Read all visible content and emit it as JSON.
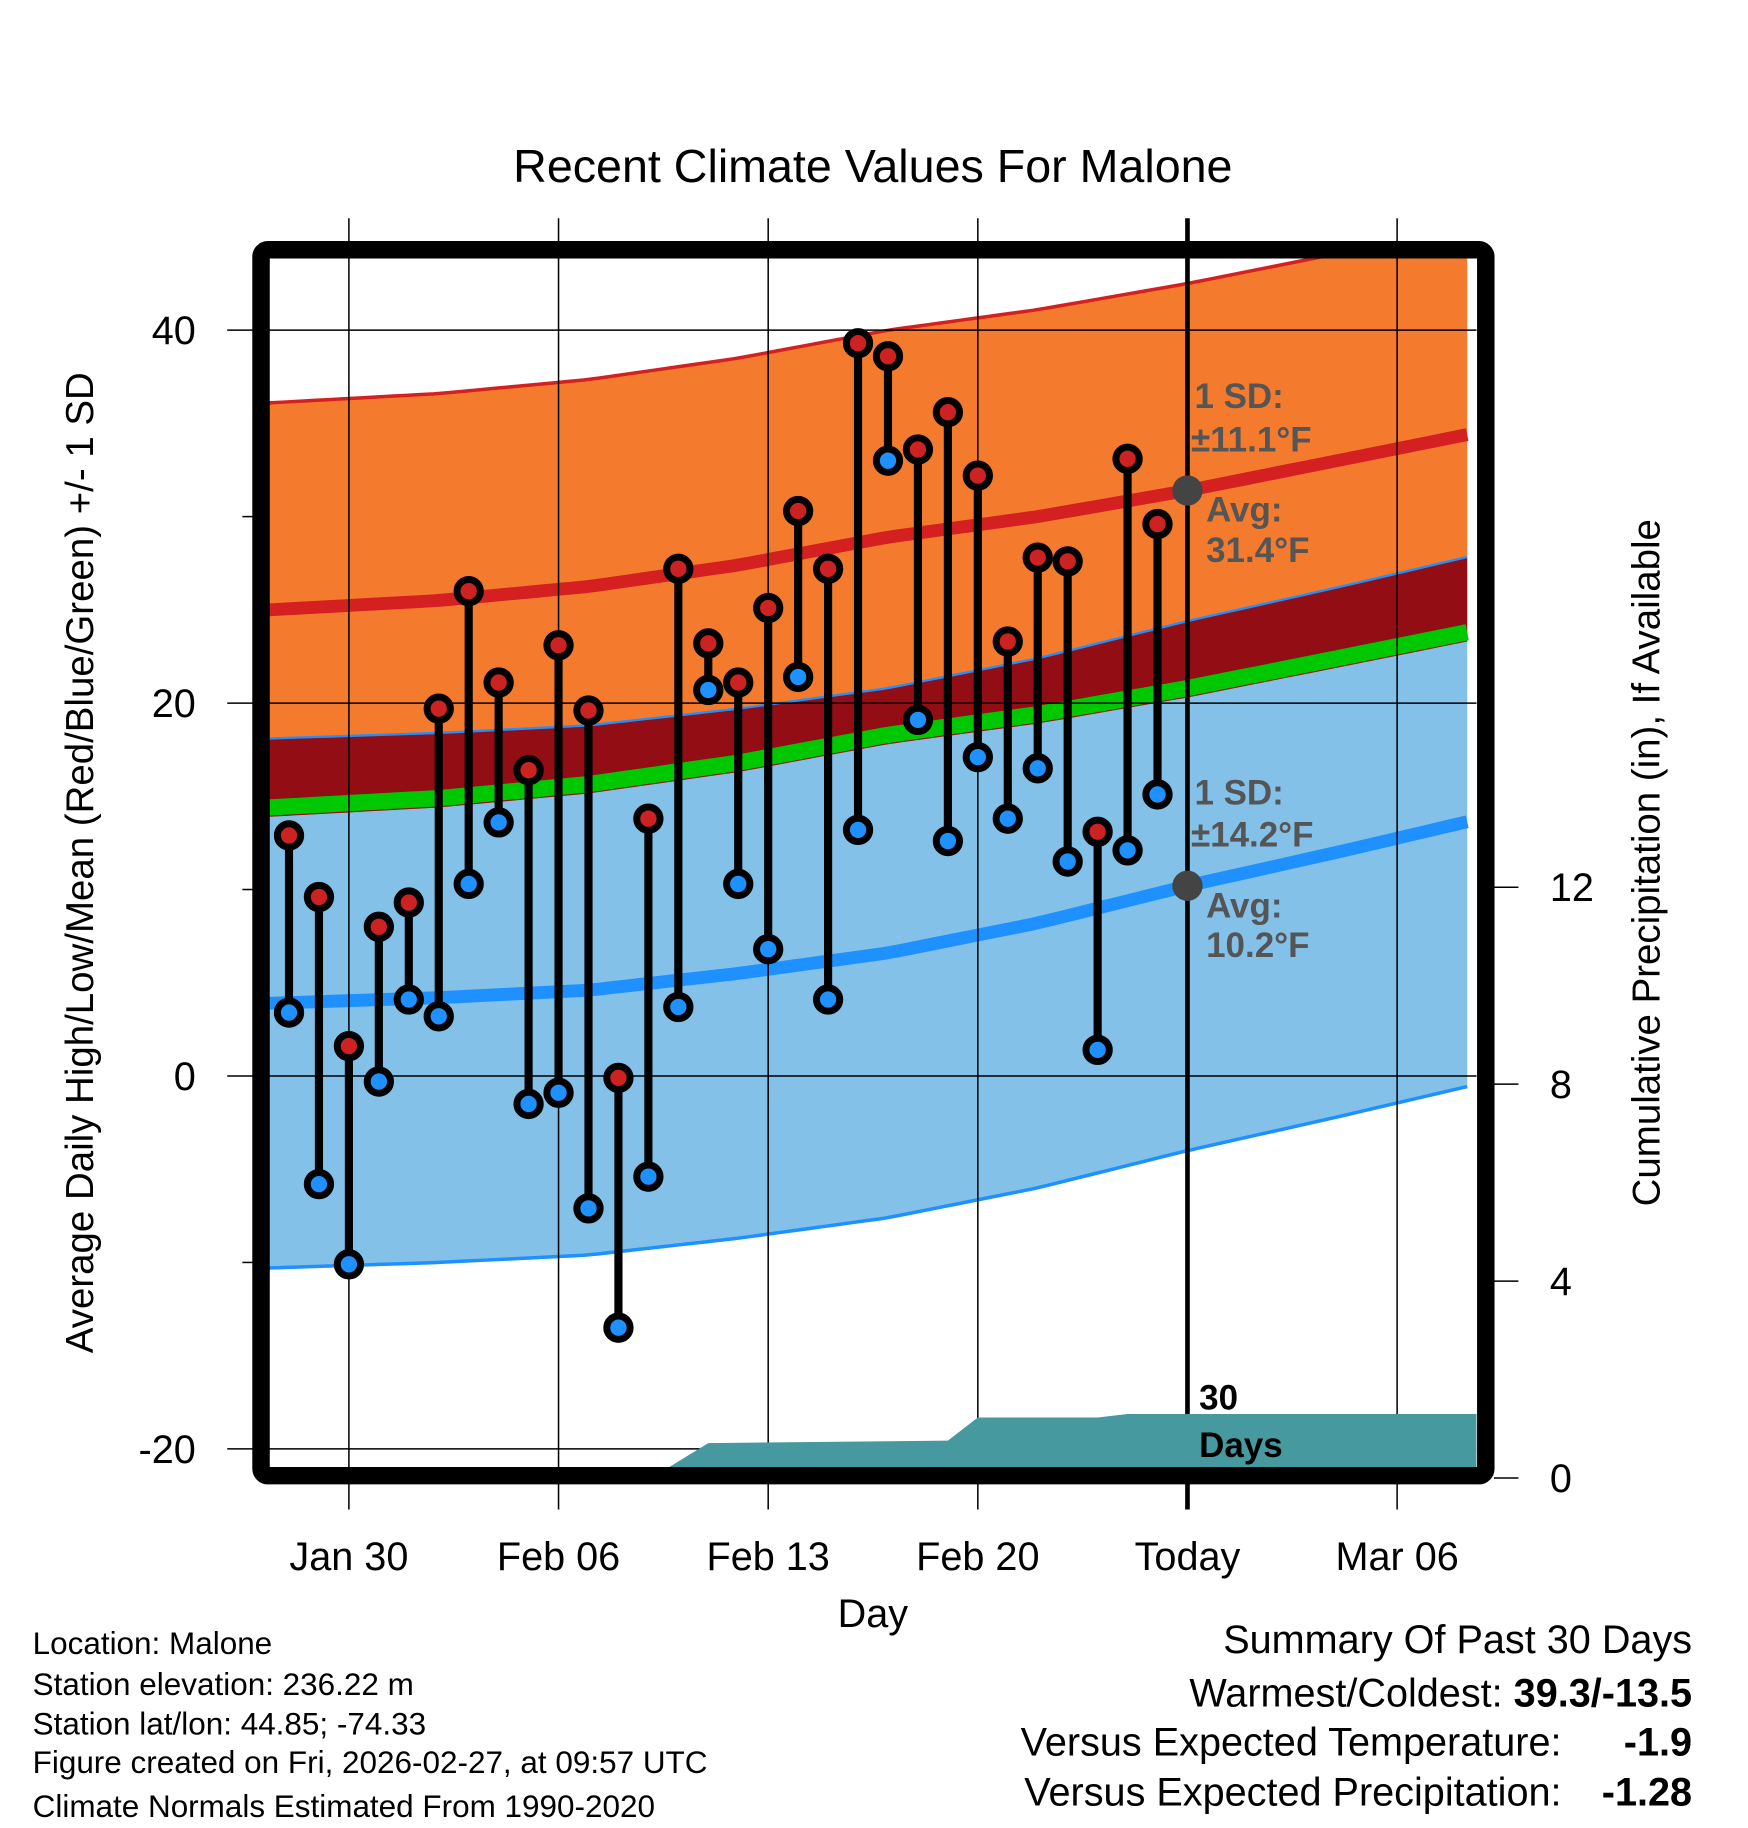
{
  "chart_data": {
    "type": "line",
    "title": "Recent Climate Values For Malone",
    "xlabel": "Day",
    "ylabel": "Average Daily High/Low/Mean (Red/Blue/Green) +/- 1 SD",
    "y2label": "Cumulative Precipitation (in), If Available",
    "ylim": [
      -21,
      44.3
    ],
    "y2lim": [
      0,
      15.5
    ],
    "yticks": [
      "40",
      "20",
      "0",
      "-20"
    ],
    "y2ticks": [
      "12",
      "8",
      "4",
      "0"
    ],
    "xticks": [
      "Jan 30",
      "Feb 06",
      "Feb 13",
      "Feb 20",
      "Today",
      "Mar 06"
    ],
    "xtick_days": [
      2,
      9,
      16,
      23,
      30,
      37
    ],
    "day0": "Jan 28",
    "today_day": 30,
    "days": [
      0,
      1,
      2,
      3,
      4,
      5,
      6,
      7,
      8,
      9,
      10,
      11,
      12,
      13,
      14,
      15,
      16,
      17,
      18,
      19,
      20,
      21,
      22,
      23,
      24,
      25,
      26,
      27,
      28,
      29
    ],
    "highs": [
      12.9,
      9.6,
      1.6,
      8.0,
      9.3,
      19.7,
      26.0,
      21.1,
      16.4,
      23.1,
      19.6,
      -0.1,
      13.8,
      27.2,
      23.2,
      21.1,
      25.1,
      30.3,
      27.2,
      39.3,
      38.6,
      33.6,
      35.6,
      32.2,
      23.3,
      27.8,
      27.6,
      13.1,
      33.1,
      29.6
    ],
    "lows": [
      3.4,
      -5.8,
      -10.1,
      -0.3,
      4.1,
      3.2,
      10.3,
      13.6,
      -1.5,
      -0.9,
      -7.1,
      -13.5,
      -5.4,
      3.7,
      20.7,
      10.3,
      6.8,
      21.4,
      4.1,
      13.2,
      33.0,
      19.1,
      12.6,
      17.1,
      13.8,
      16.5,
      11.5,
      1.4,
      12.1,
      15.1
    ],
    "normals": {
      "days": [
        -0.66,
        5,
        10,
        15,
        20,
        25,
        30,
        35,
        39.65
      ],
      "avg_high": [
        25.0,
        25.5,
        26.25,
        27.4,
        28.9,
        30.0,
        31.4,
        33.0,
        34.5
      ],
      "avg_low": [
        3.9,
        4.2,
        4.6,
        5.5,
        6.6,
        8.2,
        10.2,
        12.0,
        13.75
      ],
      "high_sd": 11.1,
      "low_sd": 14.2
    },
    "precip": {
      "days": [
        12.1,
        14.0,
        22.0,
        23.0,
        27.0,
        28.0,
        39.65
      ],
      "cumulative_in": [
        0,
        0.71,
        0.76,
        1.23,
        1.23,
        1.3,
        1.3
      ]
    },
    "annotations": {
      "high_sd_label": "1 SD:",
      "high_sd_value": "±11.1°F",
      "high_avg_label": "Avg:",
      "high_avg_value": "31.4°F",
      "low_sd_label": "1 SD:",
      "low_sd_value": "±14.2°F",
      "low_avg_label": "Avg:",
      "low_avg_value": "10.2°F",
      "precip_label_1": "30",
      "precip_label_2": "Days"
    },
    "colors": {
      "high": "#cc2222",
      "low": "#1e90ff",
      "high_band": "#f47b2e",
      "low_band": "#83c1e8",
      "overlap": "#920e14",
      "mean": "#00c800",
      "precip": "#46999f"
    }
  },
  "footer": {
    "location": "Location: Malone",
    "elevation": "Station elevation: 236.22 m",
    "latlon": "Station lat/lon: 44.85; -74.33",
    "created": "Figure created on Fri, 2026-02-27, at 09:57 UTC",
    "normals": "Climate Normals Estimated From 1990-2020"
  },
  "summary": {
    "title": "Summary Of Past 30 Days",
    "warmest_label": "Warmest/Coldest: ",
    "warmest_value": "39.3/-13.5",
    "temp_label": "Versus Expected Temperature:",
    "temp_value": "-1.9",
    "precip_label": "Versus Expected Precipitation:",
    "precip_value": "-1.28",
    "temp_color": "#1e90ff",
    "precip_color": "#a0522d"
  }
}
